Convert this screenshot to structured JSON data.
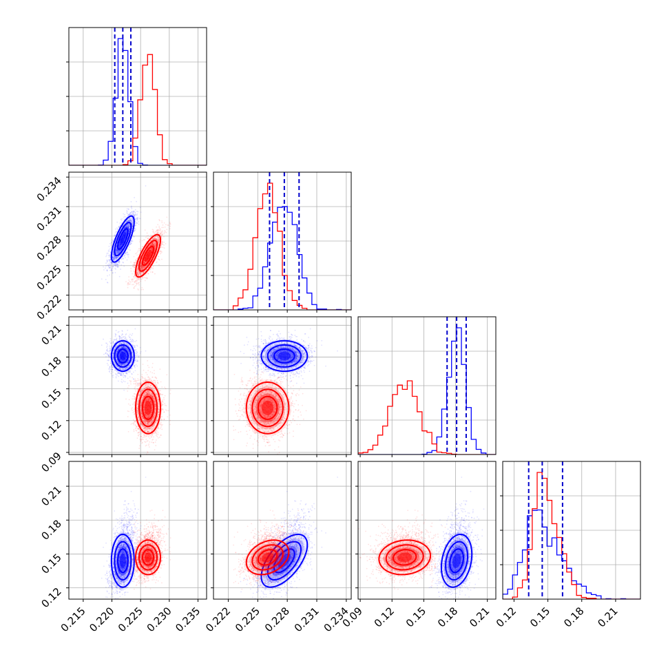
{
  "chart_data": {
    "type": "corner",
    "grid": true,
    "parameters": [
      {
        "ticks": [
          0.215,
          0.22,
          0.225,
          0.23,
          0.235
        ],
        "labels": [
          "0.215",
          "0.220",
          "0.225",
          "0.230",
          "0.235"
        ],
        "range": [
          0.2125,
          0.2365
        ]
      },
      {
        "ticks": [
          0.222,
          0.225,
          0.228,
          0.231,
          0.234
        ],
        "labels": [
          "0.222",
          "0.225",
          "0.228",
          "0.231",
          "0.234"
        ],
        "range": [
          0.2205,
          0.2345
        ]
      },
      {
        "ticks": [
          0.09,
          0.12,
          0.15,
          0.18,
          0.21
        ],
        "labels": [
          "0.09",
          "0.12",
          "0.15",
          "0.18",
          "0.21"
        ],
        "range": [
          0.088,
          0.218
        ]
      },
      {
        "ticks": [
          0.12,
          0.15,
          0.18,
          0.21
        ],
        "labels": [
          "0.12",
          "0.15",
          "0.18",
          "0.21"
        ],
        "range": [
          0.11,
          0.232
        ]
      }
    ],
    "series": [
      {
        "color": "#0000ff",
        "mean": [
          0.2219,
          0.2277,
          0.181,
          0.144
        ],
        "sd": [
          0.0011,
          0.0013,
          0.008,
          0.013
        ],
        "skew_tail": [
          0,
          0,
          0,
          1
        ],
        "quantiles_color": "#0000cc",
        "quantiles": [
          [
            0.2205,
            0.2219,
            0.2233
          ],
          [
            0.2262,
            0.2277,
            0.2292
          ],
          [
            0.172,
            0.181,
            0.19
          ],
          [
            0.133,
            0.145,
            0.163
          ]
        ],
        "pairs": {
          "1-0": 0.75,
          "2-0": 0.0,
          "2-1": 0.0,
          "3-0": 0.0,
          "3-1": 0.6,
          "3-2": 0.25
        }
      },
      {
        "color": "#ff0000",
        "mean": [
          0.2263,
          0.226,
          0.132,
          0.147
        ],
        "sd": [
          0.0012,
          0.0012,
          0.0135,
          0.0085
        ],
        "skew_tail": [
          0,
          0,
          0,
          1
        ],
        "pairs": {
          "1-0": 0.75,
          "2-0": 0.0,
          "2-1": 0.0,
          "3-0": 0.0,
          "3-1": 0.3,
          "3-2": 0.1
        }
      }
    ]
  }
}
